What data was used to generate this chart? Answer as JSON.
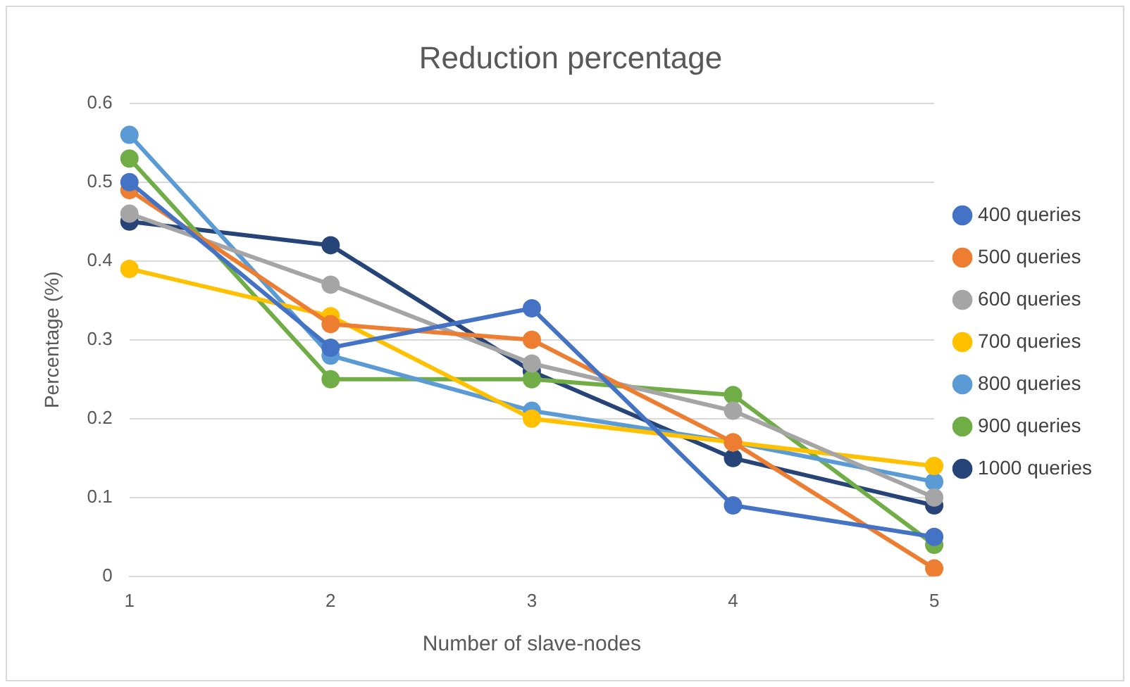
{
  "chart_data": {
    "type": "line",
    "title": "Reduction percentage",
    "xlabel": "Number of slave-nodes",
    "ylabel": "Percentage (%)",
    "categories": [
      "1",
      "2",
      "3",
      "4",
      "5"
    ],
    "series": [
      {
        "name": "400 queries",
        "color": "#4472c4",
        "values": [
          0.5,
          0.29,
          0.34,
          0.09,
          0.05
        ]
      },
      {
        "name": "500 queries",
        "color": "#ed7d31",
        "values": [
          0.49,
          0.32,
          0.3,
          0.17,
          0.01
        ]
      },
      {
        "name": "600 queries",
        "color": "#a5a5a5",
        "values": [
          0.46,
          0.37,
          0.27,
          0.21,
          0.1
        ]
      },
      {
        "name": "700 queries",
        "color": "#ffc000",
        "values": [
          0.39,
          0.33,
          0.2,
          0.17,
          0.14
        ]
      },
      {
        "name": "800 queries",
        "color": "#5b9bd5",
        "values": [
          0.56,
          0.28,
          0.21,
          0.17,
          0.12
        ]
      },
      {
        "name": "900 queries",
        "color": "#70ad47",
        "values": [
          0.53,
          0.25,
          0.25,
          0.23,
          0.04
        ]
      },
      {
        "name": "1000 queries",
        "color": "#264478",
        "values": [
          0.45,
          0.42,
          0.26,
          0.15,
          0.09
        ]
      }
    ],
    "ylim": [
      0,
      0.6
    ],
    "yticks": [
      0,
      0.1,
      0.2,
      0.3,
      0.4,
      0.5,
      0.6
    ],
    "grid": "y",
    "legend": "right",
    "marker": "circle",
    "line_style": "solid"
  }
}
